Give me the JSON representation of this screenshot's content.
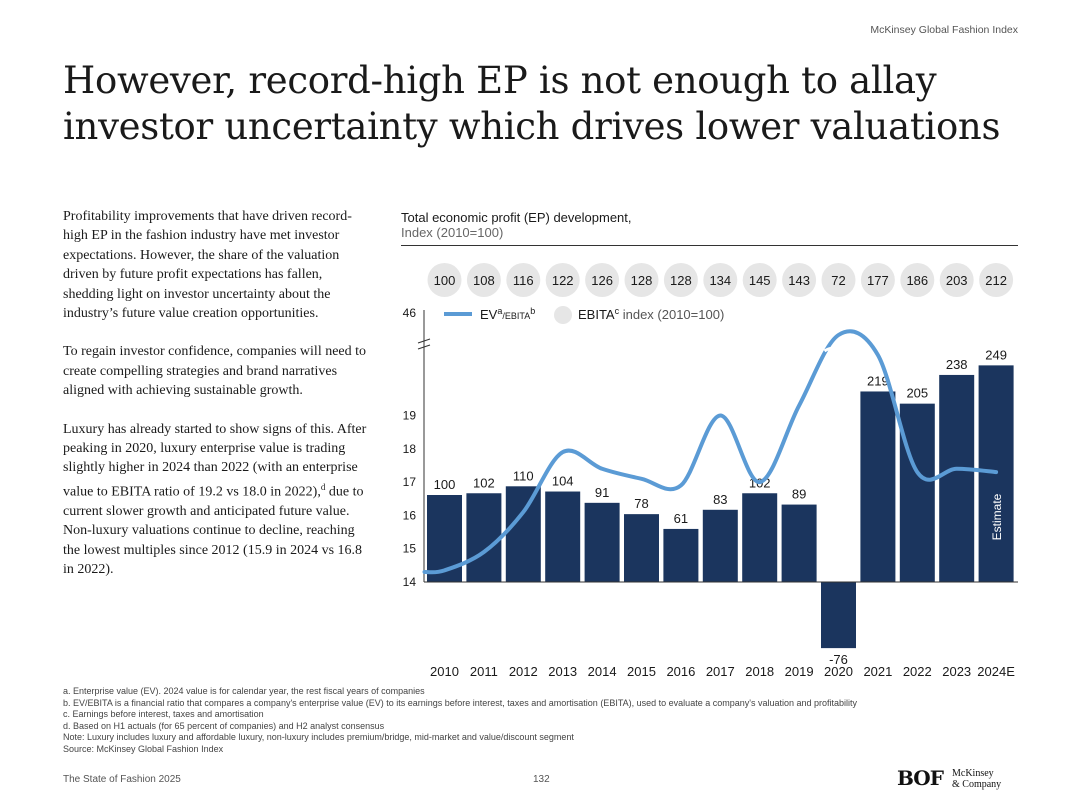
{
  "header": {
    "source_label": "McKinsey Global Fashion Index"
  },
  "headline": "However, record-high EP is not enough to allay investor uncertainty which drives lower valuations",
  "body": {
    "p1": "Profitability improvements that have driven record-high EP in the fashion industry have met investor expectations. However, the share of the valuation driven by future profit expectations has fallen, shedding light on investor uncertainty about the industry’s future value creation opportunities.",
    "p2": "To regain investor confidence, companies will need to create compelling strategies and brand narratives aligned with achieving sustainable growth.",
    "p3_before": "Luxury has already started to show signs of this. After peaking in 2020, luxury enterprise value is trading slightly higher in 2024 than 2022 (with an enterprise value to EBITA ratio of 19.2 vs 18.0 in 2022),",
    "p3_sup": "d",
    "p3_after": " due to current slower growth and anticipated future value. Non-luxury valuations continue to decline, reaching the lowest multiples since 2012 (15.9 in 2024 vs 16.8 in 2022)."
  },
  "chart_data": {
    "type": "bar+line",
    "title": "Total economic profit (EP) development,",
    "subtitle": "Index (2010=100)",
    "categories": [
      "2010",
      "2011",
      "2012",
      "2013",
      "2014",
      "2015",
      "2016",
      "2017",
      "2018",
      "2019",
      "2020",
      "2021",
      "2022",
      "2023",
      "2024E"
    ],
    "ep_index": [
      100,
      102,
      110,
      104,
      91,
      78,
      61,
      83,
      102,
      89,
      -76,
      219,
      205,
      238,
      249
    ],
    "ebitda_index": [
      100,
      108,
      116,
      122,
      126,
      128,
      128,
      134,
      145,
      143,
      72,
      177,
      186,
      203,
      212
    ],
    "ev_ebita": [
      14.3,
      14.6,
      16.0,
      17.9,
      17.4,
      17.0,
      16.9,
      19.0,
      17.0,
      19.4,
      "break (>46)",
      19.5,
      17.5,
      17.4,
      17.3
    ],
    "y_left_ticks": [
      "14",
      "15",
      "16",
      "17",
      "18",
      "19",
      "46"
    ],
    "legend": {
      "line_label": "EV",
      "line_sup_a": "a",
      "line_label_mid": "/EBITA",
      "line_sup_b": "b",
      "circle_label": "EBITA",
      "circle_sup": "c",
      "circle_label_rest": " index (2010=100)"
    },
    "estimate_label": "Estimate",
    "colors": {
      "bar": "#1b355e",
      "line": "#5b9bd5",
      "circle": "#e6e6e6",
      "axis": "#333333"
    }
  },
  "footnotes": [
    "a. Enterprise value (EV). 2024 value is for calendar year, the rest fiscal years of companies",
    "b. EV/EBITA is a financial ratio that compares a company's enterprise value (EV) to its earnings before interest, taxes and amortisation (EBITA), used to evaluate a company's valuation and profitability",
    "c. Earnings before interest, taxes and amortisation",
    "d. Based on H1 actuals (for 65 percent of companies) and H2 analyst consensus",
    "Note: Luxury includes luxury and affordable luxury, non-luxury includes premium/bridge, mid-market and value/discount segment",
    "Source: McKinsey Global Fashion Index"
  ],
  "footer": {
    "report": "The State of Fashion 2025",
    "page": "132",
    "logo_bof": "BOF",
    "logo_mck_1": "McKinsey",
    "logo_mck_2": "& Company"
  }
}
